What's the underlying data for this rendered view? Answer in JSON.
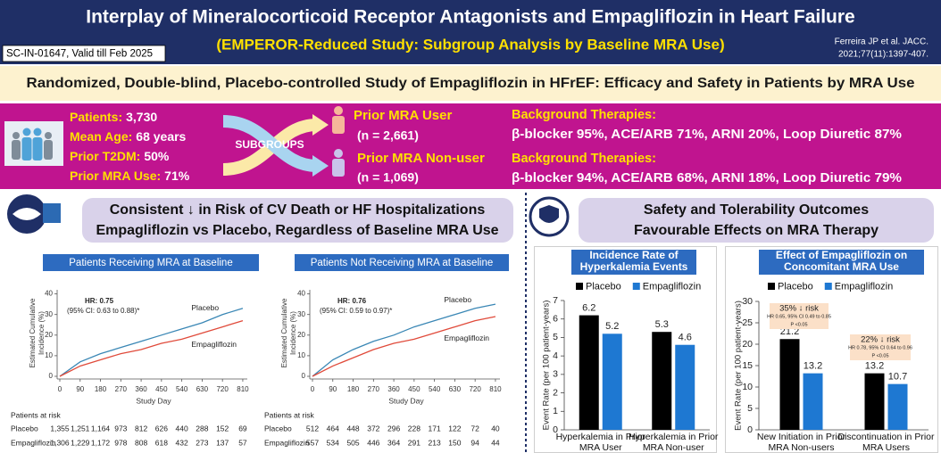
{
  "header": {
    "title": "Interplay of Mineralocorticoid Receptor Antagonists and Empagliflozin in Heart Failure",
    "subtitle": "(EMPEROR-Reduced Study: Subgroup Analysis by Baseline MRA Use)",
    "code": "SC-IN-01647, Valid till Feb 2025",
    "citation": [
      "Ferreira JP et al. JACC.",
      "2021;77(11):1397-407."
    ]
  },
  "banner": "Randomized, Double-blind, Placebo-controlled Study of Empagliflozin in HFrEF: Efficacy and Safety in Patients by MRA Use",
  "population": {
    "stats": [
      {
        "label": "Patients:",
        "value": "3,730"
      },
      {
        "label": "Mean Age:",
        "value": "68 years"
      },
      {
        "label": "Prior T2DM:",
        "value": "50%"
      },
      {
        "label": "Prior MRA Use:",
        "value": "71%"
      }
    ],
    "subgroups": "SUBGROUPS",
    "groups": [
      {
        "name": "Prior MRA User",
        "n": "(n = 2,661)",
        "therapies_label": "Background Therapies:",
        "therapies": "β-blocker 95%, ACE/ARB 71%, ARNI 20%, Loop Diuretic 87%"
      },
      {
        "name": "Prior MRA Non-user",
        "n": "(n = 1,069)",
        "therapies_label": "Background Therapies:",
        "therapies": "β-blocker 94%, ACE/ARB 68%, ARNI 18%, Loop Diuretic 79%"
      }
    ]
  },
  "efficacy_heading": [
    "Consistent ↓ in Risk of CV Death or HF Hospitalizations",
    "Empagliflozin vs Placebo, Regardless of Baseline MRA Use"
  ],
  "safety_heading": [
    "Safety and Tolerability Outcomes",
    "Favourable Effects on MRA Therapy"
  ],
  "chart_data": [
    {
      "type": "line",
      "title": "Patients Receiving MRA at Baseline",
      "annotation": [
        "HR: 0.75",
        "(95% CI: 0.63 to 0.88)*"
      ],
      "x": [
        0,
        90,
        180,
        270,
        360,
        450,
        540,
        630,
        720,
        810
      ],
      "series": [
        {
          "name": "Placebo",
          "color": "#3a87b5",
          "values": [
            0,
            7,
            11,
            14,
            17,
            20,
            23,
            26,
            30,
            33
          ]
        },
        {
          "name": "Empagliflozin",
          "color": "#e04a3a",
          "values": [
            0,
            5,
            8,
            11,
            13,
            16,
            18,
            21,
            24,
            27
          ]
        }
      ],
      "xlim": [
        0,
        830
      ],
      "ylim": [
        0,
        42
      ],
      "xticks": [
        0,
        90,
        180,
        270,
        360,
        450,
        540,
        630,
        720,
        810
      ],
      "yticks": [
        0,
        10,
        20,
        30,
        40
      ],
      "xlabel": "Study Day",
      "ylabel": [
        "Estimated Cumulative",
        "Incidence (%)"
      ],
      "at_risk": {
        "label": "Patients at risk",
        "rows": [
          {
            "name": "Placebo",
            "counts": [
              "1,355",
              "1,251",
              "1,164",
              "973",
              "812",
              "626",
              "440",
              "288",
              "152",
              "69"
            ]
          },
          {
            "name": "Empagliflozin",
            "counts": [
              "1,306",
              "1,229",
              "1,172",
              "978",
              "808",
              "618",
              "432",
              "273",
              "137",
              "57"
            ]
          }
        ]
      }
    },
    {
      "type": "line",
      "title": "Patients Not Receiving MRA at Baseline",
      "annotation": [
        "HR: 0.76",
        "(95% CI: 0.59 to 0.97)*"
      ],
      "x": [
        0,
        90,
        180,
        270,
        360,
        450,
        540,
        630,
        720,
        810
      ],
      "series": [
        {
          "name": "Placebo",
          "color": "#3a87b5",
          "values": [
            0,
            8,
            13,
            17,
            20,
            24,
            27,
            30,
            33,
            35
          ]
        },
        {
          "name": "Empagliflozin",
          "color": "#e04a3a",
          "values": [
            0,
            5,
            9,
            13,
            16,
            18,
            21,
            24,
            27,
            29
          ]
        }
      ],
      "xlim": [
        0,
        830
      ],
      "ylim": [
        0,
        42
      ],
      "xticks": [
        0,
        90,
        180,
        270,
        360,
        450,
        540,
        630,
        720,
        810
      ],
      "yticks": [
        0,
        10,
        20,
        30,
        40
      ],
      "xlabel": "Study Day",
      "ylabel": [
        "Estimated Cumulative",
        "Incidence (%)"
      ],
      "at_risk": {
        "label": "Patients at risk",
        "rows": [
          {
            "name": "Placebo",
            "counts": [
              "512",
              "464",
              "448",
              "372",
              "296",
              "228",
              "171",
              "122",
              "72",
              "40"
            ]
          },
          {
            "name": "Empagliflozin",
            "counts": [
              "557",
              "534",
              "505",
              "446",
              "364",
              "291",
              "213",
              "150",
              "94",
              "44"
            ]
          }
        ]
      }
    },
    {
      "type": "bar",
      "title": [
        "Incidence Rate of",
        "Hyperkalemia Events"
      ],
      "categories": [
        "Hyperkalemia in Prior MRA User",
        "Hyperkalemia in Prior MRA Non-user"
      ],
      "series": [
        {
          "name": "Placebo",
          "color": "#000000",
          "values": [
            6.2,
            5.3
          ]
        },
        {
          "name": "Empagliflozin",
          "color": "#1e78d2",
          "values": [
            5.2,
            4.6
          ]
        }
      ],
      "ylim": [
        0,
        7
      ],
      "yticks": [
        0,
        1,
        2,
        3,
        4,
        5,
        6,
        7
      ],
      "ylabel": "Event Rate (per 100 patient-years)"
    },
    {
      "type": "bar",
      "title": [
        "Effect of Empagliflozin on",
        "Concomitant MRA Use"
      ],
      "categories": [
        "New Initiation in Prior MRA Non-users",
        "Discontinuation in Prior MRA Users"
      ],
      "series": [
        {
          "name": "Placebo",
          "color": "#000000",
          "values": [
            21.2,
            13.2
          ]
        },
        {
          "name": "Empagliflozin",
          "color": "#1e78d2",
          "values": [
            13.2,
            10.7
          ]
        }
      ],
      "ylim": [
        0,
        30
      ],
      "yticks": [
        0,
        5,
        10,
        15,
        20,
        25,
        30
      ],
      "ylabel": "Event Rate (per 100 patient-years)",
      "annotations": [
        [
          "35% ↓ risk",
          "HR 0.65, 95% CI 0.49 to 0.85",
          "P <0.05"
        ],
        [
          "22% ↓ risk",
          "HR 0.78, 95% CI 0.64 to 0.96",
          "P <0.05"
        ]
      ]
    }
  ]
}
